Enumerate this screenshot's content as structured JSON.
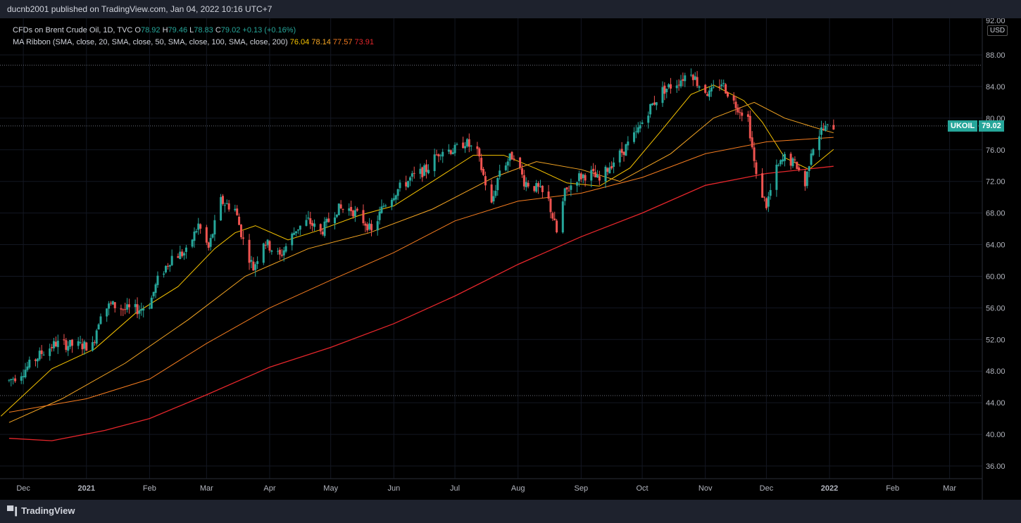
{
  "header": {
    "published": "ducnb2001 published on TradingView.com, Jan 04, 2022 10:16 UTC+7"
  },
  "legend": {
    "title": "CFDs on Brent Crude Oil, 1D, TVC",
    "o_label": "O",
    "o": "78.92",
    "h_label": "H",
    "h": "79.46",
    "l_label": "L",
    "l": "78.83",
    "c_label": "C",
    "c": "79.02",
    "change": "+0.13 (+0.16%)",
    "ma_title": "MA Ribbon (SMA, close, 20, SMA, close, 50, SMA, close, 100, SMA, close, 200)",
    "ma_values": [
      "76.04",
      "78.14",
      "77.57",
      "73.91"
    ]
  },
  "axis": {
    "currency": "USD"
  },
  "last_price": {
    "symbol": "UKOIL",
    "value": "79.02"
  },
  "footer": {
    "brand": "TradingView"
  },
  "colors": {
    "up": "#26a69a",
    "down": "#ef5350",
    "ma20": "#f7c400",
    "ma50": "#f6a623",
    "ma100": "#f57c1f",
    "ma200": "#e5262b"
  },
  "chart_data": {
    "type": "candlestick",
    "ylim": [
      34,
      92
    ],
    "y_ticks": [
      "36.00",
      "40.00",
      "44.00",
      "48.00",
      "52.00",
      "56.00",
      "60.00",
      "64.00",
      "68.00",
      "72.00",
      "76.00",
      "80.00",
      "84.00",
      "88.00"
    ],
    "y_top_partial": "92.00",
    "x_ticks": [
      {
        "label": "Dec",
        "date": "2020-12-01"
      },
      {
        "label": "2021",
        "date": "2021-01-01"
      },
      {
        "label": "Feb",
        "date": "2021-02-01"
      },
      {
        "label": "Mar",
        "date": "2021-03-01"
      },
      {
        "label": "Apr",
        "date": "2021-04-01"
      },
      {
        "label": "May",
        "date": "2021-05-01"
      },
      {
        "label": "Jun",
        "date": "2021-06-01"
      },
      {
        "label": "Jul",
        "date": "2021-07-01"
      },
      {
        "label": "Aug",
        "date": "2021-08-01"
      },
      {
        "label": "Sep",
        "date": "2021-09-01"
      },
      {
        "label": "Oct",
        "date": "2021-10-01"
      },
      {
        "label": "Nov",
        "date": "2021-11-01"
      },
      {
        "label": "Dec",
        "date": "2021-12-01"
      },
      {
        "label": "2022",
        "date": "2022-01-01"
      },
      {
        "label": "Feb",
        "date": "2022-02-01"
      },
      {
        "label": "Mar",
        "date": "2022-03-01"
      }
    ],
    "dotted_levels": [
      86.7,
      79.02,
      44.9
    ],
    "close_path": [
      {
        "date": "2020-11-24",
        "value": 46.8
      },
      {
        "date": "2020-12-01",
        "value": 48.0
      },
      {
        "date": "2020-12-10",
        "value": 50.3
      },
      {
        "date": "2020-12-17",
        "value": 51.5
      },
      {
        "date": "2020-12-24",
        "value": 51.3
      },
      {
        "date": "2021-01-04",
        "value": 51.2
      },
      {
        "date": "2021-01-08",
        "value": 55.5
      },
      {
        "date": "2021-01-13",
        "value": 56.4
      },
      {
        "date": "2021-01-20",
        "value": 55.8
      },
      {
        "date": "2021-01-27",
        "value": 55.8
      },
      {
        "date": "2021-02-01",
        "value": 56.5
      },
      {
        "date": "2021-02-05",
        "value": 59.5
      },
      {
        "date": "2021-02-12",
        "value": 62.5
      },
      {
        "date": "2021-02-19",
        "value": 63.0
      },
      {
        "date": "2021-02-25",
        "value": 66.5
      },
      {
        "date": "2021-03-02",
        "value": 63.5
      },
      {
        "date": "2021-03-08",
        "value": 69.5
      },
      {
        "date": "2021-03-15",
        "value": 68.5
      },
      {
        "date": "2021-03-19",
        "value": 64.5
      },
      {
        "date": "2021-03-24",
        "value": 61.0
      },
      {
        "date": "2021-03-29",
        "value": 64.5
      },
      {
        "date": "2021-04-06",
        "value": 62.5
      },
      {
        "date": "2021-04-14",
        "value": 66.0
      },
      {
        "date": "2021-04-20",
        "value": 67.0
      },
      {
        "date": "2021-04-26",
        "value": 65.5
      },
      {
        "date": "2021-05-04",
        "value": 68.5
      },
      {
        "date": "2021-05-11",
        "value": 68.5
      },
      {
        "date": "2021-05-19",
        "value": 66.5
      },
      {
        "date": "2021-05-21",
        "value": 65.5
      },
      {
        "date": "2021-05-27",
        "value": 69.0
      },
      {
        "date": "2021-06-03",
        "value": 71.0
      },
      {
        "date": "2021-06-10",
        "value": 72.5
      },
      {
        "date": "2021-06-17",
        "value": 73.5
      },
      {
        "date": "2021-06-24",
        "value": 76.0
      },
      {
        "date": "2021-07-01",
        "value": 76.0
      },
      {
        "date": "2021-07-06",
        "value": 77.0
      },
      {
        "date": "2021-07-12",
        "value": 75.5
      },
      {
        "date": "2021-07-19",
        "value": 69.0
      },
      {
        "date": "2021-07-23",
        "value": 73.5
      },
      {
        "date": "2021-07-30",
        "value": 75.5
      },
      {
        "date": "2021-08-04",
        "value": 72.0
      },
      {
        "date": "2021-08-11",
        "value": 71.0
      },
      {
        "date": "2021-08-16",
        "value": 69.5
      },
      {
        "date": "2021-08-20",
        "value": 65.5
      },
      {
        "date": "2021-08-24",
        "value": 70.5
      },
      {
        "date": "2021-08-30",
        "value": 72.5
      },
      {
        "date": "2021-09-06",
        "value": 73.0
      },
      {
        "date": "2021-09-10",
        "value": 72.0
      },
      {
        "date": "2021-09-15",
        "value": 74.0
      },
      {
        "date": "2021-09-22",
        "value": 76.0
      },
      {
        "date": "2021-09-28",
        "value": 78.0
      },
      {
        "date": "2021-10-04",
        "value": 81.0
      },
      {
        "date": "2021-10-11",
        "value": 83.5
      },
      {
        "date": "2021-10-18",
        "value": 84.5
      },
      {
        "date": "2021-10-25",
        "value": 86.0
      },
      {
        "date": "2021-10-28",
        "value": 84.5
      },
      {
        "date": "2021-11-03",
        "value": 83.0
      },
      {
        "date": "2021-11-09",
        "value": 84.5
      },
      {
        "date": "2021-11-15",
        "value": 82.0
      },
      {
        "date": "2021-11-22",
        "value": 80.0
      },
      {
        "date": "2021-11-26",
        "value": 72.5
      },
      {
        "date": "2021-12-01",
        "value": 69.0
      },
      {
        "date": "2021-12-06",
        "value": 73.5
      },
      {
        "date": "2021-12-10",
        "value": 75.0
      },
      {
        "date": "2021-12-16",
        "value": 74.0
      },
      {
        "date": "2021-12-20",
        "value": 71.5
      },
      {
        "date": "2021-12-23",
        "value": 76.0
      },
      {
        "date": "2021-12-28",
        "value": 78.5
      },
      {
        "date": "2022-01-03",
        "value": 79.02
      }
    ],
    "series": [
      {
        "period": 20,
        "color": "#f7c400",
        "values": [
          {
            "date": "2020-11-20",
            "value": 42.3
          },
          {
            "date": "2020-12-15",
            "value": 48.3
          },
          {
            "date": "2021-01-05",
            "value": 50.8
          },
          {
            "date": "2021-01-25",
            "value": 55.3
          },
          {
            "date": "2021-02-15",
            "value": 58.7
          },
          {
            "date": "2021-03-05",
            "value": 63.5
          },
          {
            "date": "2021-03-15",
            "value": 65.5
          },
          {
            "date": "2021-03-25",
            "value": 66.4
          },
          {
            "date": "2021-04-10",
            "value": 64.6
          },
          {
            "date": "2021-04-25",
            "value": 65.8
          },
          {
            "date": "2021-05-15",
            "value": 67.7
          },
          {
            "date": "2021-06-01",
            "value": 68.9
          },
          {
            "date": "2021-06-20",
            "value": 72.0
          },
          {
            "date": "2021-07-10",
            "value": 75.3
          },
          {
            "date": "2021-07-25",
            "value": 75.3
          },
          {
            "date": "2021-08-10",
            "value": 73.6
          },
          {
            "date": "2021-08-25",
            "value": 71.8
          },
          {
            "date": "2021-09-10",
            "value": 71.4
          },
          {
            "date": "2021-09-25",
            "value": 73.7
          },
          {
            "date": "2021-10-10",
            "value": 78.3
          },
          {
            "date": "2021-10-25",
            "value": 83.0
          },
          {
            "date": "2021-11-05",
            "value": 84.2
          },
          {
            "date": "2021-11-20",
            "value": 82.2
          },
          {
            "date": "2021-11-29",
            "value": 79.5
          },
          {
            "date": "2021-12-10",
            "value": 75.0
          },
          {
            "date": "2021-12-22",
            "value": 73.5
          },
          {
            "date": "2022-01-03",
            "value": 76.04
          }
        ]
      },
      {
        "period": 50,
        "color": "#f6a623",
        "values": [
          {
            "date": "2020-11-24",
            "value": 41.5
          },
          {
            "date": "2020-12-20",
            "value": 44.5
          },
          {
            "date": "2021-01-20",
            "value": 49.0
          },
          {
            "date": "2021-02-20",
            "value": 54.5
          },
          {
            "date": "2021-03-20",
            "value": 60.0
          },
          {
            "date": "2021-04-20",
            "value": 63.5
          },
          {
            "date": "2021-05-20",
            "value": 65.5
          },
          {
            "date": "2021-06-20",
            "value": 68.5
          },
          {
            "date": "2021-07-20",
            "value": 72.5
          },
          {
            "date": "2021-08-10",
            "value": 74.5
          },
          {
            "date": "2021-09-01",
            "value": 73.5
          },
          {
            "date": "2021-09-20",
            "value": 72.0
          },
          {
            "date": "2021-10-15",
            "value": 75.5
          },
          {
            "date": "2021-11-05",
            "value": 80.0
          },
          {
            "date": "2021-11-25",
            "value": 82.0
          },
          {
            "date": "2021-12-10",
            "value": 80.0
          },
          {
            "date": "2021-12-25",
            "value": 78.8
          },
          {
            "date": "2022-01-03",
            "value": 78.14
          }
        ]
      },
      {
        "period": 100,
        "color": "#f57c1f",
        "values": [
          {
            "date": "2020-11-24",
            "value": 42.8
          },
          {
            "date": "2021-01-01",
            "value": 44.5
          },
          {
            "date": "2021-02-01",
            "value": 47.0
          },
          {
            "date": "2021-03-01",
            "value": 51.5
          },
          {
            "date": "2021-04-01",
            "value": 56.0
          },
          {
            "date": "2021-05-01",
            "value": 59.5
          },
          {
            "date": "2021-06-01",
            "value": 63.0
          },
          {
            "date": "2021-07-01",
            "value": 67.0
          },
          {
            "date": "2021-08-01",
            "value": 69.5
          },
          {
            "date": "2021-09-01",
            "value": 70.5
          },
          {
            "date": "2021-10-01",
            "value": 72.5
          },
          {
            "date": "2021-11-01",
            "value": 75.5
          },
          {
            "date": "2021-12-01",
            "value": 77.0
          },
          {
            "date": "2022-01-03",
            "value": 77.57
          }
        ]
      },
      {
        "period": 200,
        "color": "#e5262b",
        "values": [
          {
            "date": "2020-11-24",
            "value": 39.5
          },
          {
            "date": "2020-12-15",
            "value": 39.2
          },
          {
            "date": "2021-01-10",
            "value": 40.5
          },
          {
            "date": "2021-02-01",
            "value": 42.0
          },
          {
            "date": "2021-03-01",
            "value": 45.0
          },
          {
            "date": "2021-04-01",
            "value": 48.5
          },
          {
            "date": "2021-05-01",
            "value": 51.0
          },
          {
            "date": "2021-06-01",
            "value": 54.0
          },
          {
            "date": "2021-07-01",
            "value": 57.5
          },
          {
            "date": "2021-08-01",
            "value": 61.5
          },
          {
            "date": "2021-09-01",
            "value": 65.0
          },
          {
            "date": "2021-10-01",
            "value": 68.0
          },
          {
            "date": "2021-11-01",
            "value": 71.5
          },
          {
            "date": "2021-12-01",
            "value": 73.0
          },
          {
            "date": "2022-01-03",
            "value": 73.91
          }
        ]
      }
    ]
  }
}
